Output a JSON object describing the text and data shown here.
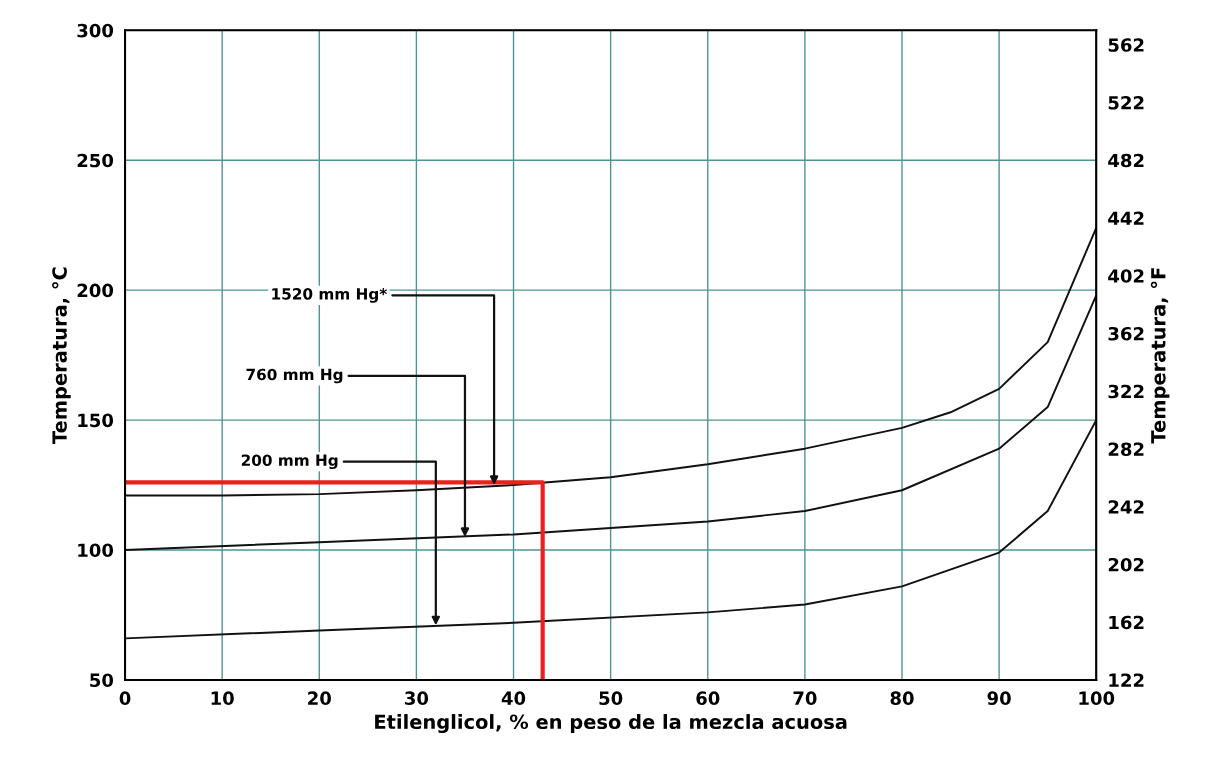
{
  "chart_data": {
    "type": "line",
    "xlabel": "Etilenglicol, % en peso de la mezcla acuosa",
    "ylabel": "Temperatura, °C",
    "y2label": "Temperatura, °F",
    "xlim": [
      0,
      100
    ],
    "xticks": [
      0,
      10,
      20,
      30,
      40,
      50,
      60,
      70,
      80,
      90,
      100
    ],
    "ylim": [
      50,
      300
    ],
    "yticks": [
      50,
      100,
      150,
      200,
      250,
      300
    ],
    "y2lim": [
      122,
      572
    ],
    "y2ticks": [
      122,
      162,
      202,
      242,
      282,
      322,
      362,
      402,
      442,
      482,
      522,
      562
    ],
    "grid": true,
    "series": [
      {
        "color": "#111111",
        "x": [
          0,
          10,
          20,
          30,
          40,
          50,
          60,
          70,
          80,
          85,
          90,
          95,
          100
        ],
        "values": [
          121,
          121,
          121.5,
          123,
          125,
          128,
          133,
          139,
          147,
          153,
          162,
          180,
          224
        ]
      },
      {
        "color": "#111111",
        "x": [
          0,
          20,
          40,
          60,
          70,
          80,
          90,
          95,
          100
        ],
        "values": [
          100,
          103,
          106,
          111,
          115,
          123,
          139,
          155,
          198
        ]
      },
      {
        "color": "#111111",
        "x": [
          0,
          20,
          40,
          60,
          70,
          80,
          90,
          95,
          100
        ],
        "values": [
          66,
          69,
          72,
          76,
          79,
          86,
          99,
          115,
          150
        ]
      },
      {
        "color": "#e8211c",
        "x": [
          0,
          43,
          43
        ],
        "values": [
          126,
          126,
          50
        ]
      }
    ],
    "annotations": [
      {
        "text": "1520 mm Hg*",
        "x": 38,
        "y": 125
      },
      {
        "text": "760 mm Hg",
        "x": 35,
        "y": 105
      },
      {
        "text": "200 mm Hg",
        "x": 32,
        "y": 71
      }
    ]
  }
}
